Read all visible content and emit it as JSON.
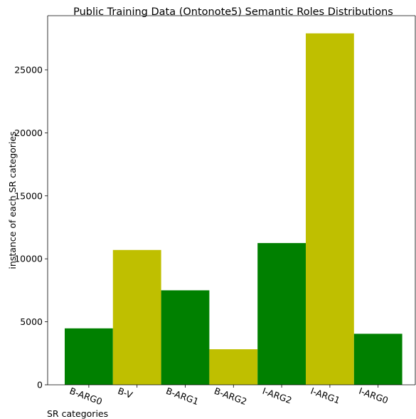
{
  "chart_data": {
    "type": "bar",
    "title": "Public Training Data (Ontonote5) Semantic Roles Distributions",
    "xlabel": "SR categories",
    "ylabel": "instance of each SR categories",
    "categories": [
      "B-ARG0",
      "B-V",
      "B-ARG1",
      "B-ARG2",
      "I-ARG2",
      "I-ARG1",
      "I-ARG0"
    ],
    "values": [
      4480,
      10700,
      7500,
      2820,
      11250,
      27900,
      4050
    ],
    "bar_colors": [
      "#008000",
      "#bfbf00",
      "#008000",
      "#bfbf00",
      "#008000",
      "#bfbf00",
      "#008000"
    ],
    "yticks": [
      0,
      5000,
      10000,
      15000,
      20000,
      25000
    ],
    "ylim": [
      0,
      29300
    ],
    "grid": false,
    "legend": "none"
  }
}
